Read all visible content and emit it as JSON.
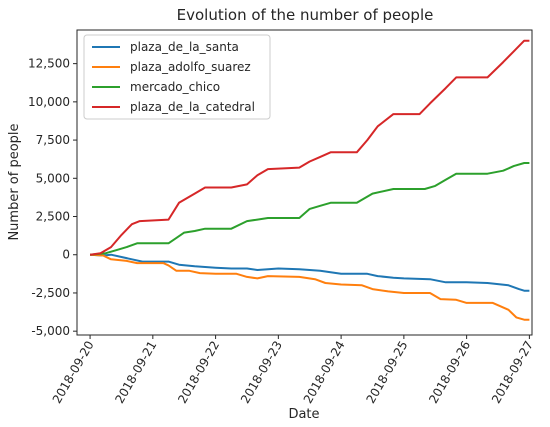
{
  "chart_data": {
    "type": "line",
    "title": "Evolution of the number of people",
    "xlabel": "Date",
    "ylabel": "Number of people",
    "xlim": [
      "2018-09-19T19:00",
      "2018-09-27T01:00"
    ],
    "ylim": [
      -5250,
      14700
    ],
    "x_ticks": [
      "2018-09-20",
      "2018-09-21",
      "2018-09-22",
      "2018-09-23",
      "2018-09-24",
      "2018-09-25",
      "2018-09-26",
      "2018-09-27"
    ],
    "y_ticks": [
      {
        "value": -5000,
        "label": "-5,000"
      },
      {
        "value": -2500,
        "label": "-2,500"
      },
      {
        "value": 0,
        "label": "0"
      },
      {
        "value": 2500,
        "label": "2,500"
      },
      {
        "value": 5000,
        "label": "5,000"
      },
      {
        "value": 7500,
        "label": "7,500"
      },
      {
        "value": 10000,
        "label": "10,000"
      },
      {
        "value": 12500,
        "label": "12,500"
      }
    ],
    "grid": false,
    "legend_position": "top-left",
    "series": [
      {
        "name": "plaza_de_la_santa",
        "color": "#1f77b4",
        "points": [
          [
            "2018-09-20T00:00",
            0
          ],
          [
            "2018-09-20T05:00",
            -50
          ],
          [
            "2018-09-20T08:00",
            0
          ],
          [
            "2018-09-20T12:00",
            -150
          ],
          [
            "2018-09-20T16:00",
            -300
          ],
          [
            "2018-09-20T20:00",
            -450
          ],
          [
            "2018-09-21T00:00",
            -450
          ],
          [
            "2018-09-21T06:00",
            -450
          ],
          [
            "2018-09-21T10:00",
            -650
          ],
          [
            "2018-09-21T16:00",
            -750
          ],
          [
            "2018-09-22T00:00",
            -850
          ],
          [
            "2018-09-22T06:00",
            -900
          ],
          [
            "2018-09-22T12:00",
            -900
          ],
          [
            "2018-09-22T16:00",
            -1000
          ],
          [
            "2018-09-22T20:00",
            -950
          ],
          [
            "2018-09-23T00:00",
            -900
          ],
          [
            "2018-09-23T08:00",
            -950
          ],
          [
            "2018-09-23T16:00",
            -1050
          ],
          [
            "2018-09-23T20:00",
            -1150
          ],
          [
            "2018-09-24T00:00",
            -1250
          ],
          [
            "2018-09-24T10:00",
            -1250
          ],
          [
            "2018-09-24T14:00",
            -1400
          ],
          [
            "2018-09-24T20:00",
            -1500
          ],
          [
            "2018-09-25T00:00",
            -1550
          ],
          [
            "2018-09-25T10:00",
            -1600
          ],
          [
            "2018-09-25T16:00",
            -1800
          ],
          [
            "2018-09-26T00:00",
            -1800
          ],
          [
            "2018-09-26T08:00",
            -1850
          ],
          [
            "2018-09-26T16:00",
            -2000
          ],
          [
            "2018-09-26T20:00",
            -2250
          ],
          [
            "2018-09-26T22:00",
            -2350
          ],
          [
            "2018-09-27T00:00",
            -2350
          ]
        ]
      },
      {
        "name": "plaza_adolfo_suarez",
        "color": "#ff7f0e",
        "points": [
          [
            "2018-09-20T00:00",
            0
          ],
          [
            "2018-09-20T05:00",
            -50
          ],
          [
            "2018-09-20T08:00",
            -300
          ],
          [
            "2018-09-20T14:00",
            -400
          ],
          [
            "2018-09-20T18:00",
            -550
          ],
          [
            "2018-09-21T04:00",
            -550
          ],
          [
            "2018-09-21T06:00",
            -700
          ],
          [
            "2018-09-21T09:00",
            -1050
          ],
          [
            "2018-09-21T14:00",
            -1050
          ],
          [
            "2018-09-21T18:00",
            -1200
          ],
          [
            "2018-09-22T00:00",
            -1250
          ],
          [
            "2018-09-22T08:00",
            -1250
          ],
          [
            "2018-09-22T12:00",
            -1450
          ],
          [
            "2018-09-22T16:00",
            -1550
          ],
          [
            "2018-09-22T20:00",
            -1400
          ],
          [
            "2018-09-23T08:00",
            -1450
          ],
          [
            "2018-09-23T14:00",
            -1600
          ],
          [
            "2018-09-23T18:00",
            -1850
          ],
          [
            "2018-09-24T00:00",
            -1950
          ],
          [
            "2018-09-24T08:00",
            -2000
          ],
          [
            "2018-09-24T12:00",
            -2250
          ],
          [
            "2018-09-24T18:00",
            -2400
          ],
          [
            "2018-09-25T00:00",
            -2500
          ],
          [
            "2018-09-25T10:00",
            -2500
          ],
          [
            "2018-09-25T14:00",
            -2900
          ],
          [
            "2018-09-25T20:00",
            -2950
          ],
          [
            "2018-09-26T00:00",
            -3150
          ],
          [
            "2018-09-26T10:00",
            -3150
          ],
          [
            "2018-09-26T16:00",
            -3600
          ],
          [
            "2018-09-26T19:00",
            -4100
          ],
          [
            "2018-09-26T22:00",
            -4250
          ],
          [
            "2018-09-27T00:00",
            -4250
          ]
        ]
      },
      {
        "name": "mercado_chico",
        "color": "#2ca02c",
        "points": [
          [
            "2018-09-20T00:00",
            0
          ],
          [
            "2018-09-20T06:00",
            100
          ],
          [
            "2018-09-20T10:00",
            300
          ],
          [
            "2018-09-20T14:00",
            500
          ],
          [
            "2018-09-20T18:00",
            750
          ],
          [
            "2018-09-21T06:00",
            750
          ],
          [
            "2018-09-21T09:00",
            1100
          ],
          [
            "2018-09-21T12:00",
            1450
          ],
          [
            "2018-09-21T16:00",
            1550
          ],
          [
            "2018-09-21T20:00",
            1700
          ],
          [
            "2018-09-22T06:00",
            1700
          ],
          [
            "2018-09-22T12:00",
            2200
          ],
          [
            "2018-09-22T16:00",
            2300
          ],
          [
            "2018-09-22T20:00",
            2400
          ],
          [
            "2018-09-23T08:00",
            2400
          ],
          [
            "2018-09-23T12:00",
            3000
          ],
          [
            "2018-09-23T16:00",
            3200
          ],
          [
            "2018-09-23T20:00",
            3400
          ],
          [
            "2018-09-24T06:00",
            3400
          ],
          [
            "2018-09-24T12:00",
            4000
          ],
          [
            "2018-09-24T20:00",
            4300
          ],
          [
            "2018-09-25T08:00",
            4300
          ],
          [
            "2018-09-25T12:00",
            4500
          ],
          [
            "2018-09-25T16:00",
            4900
          ],
          [
            "2018-09-25T20:00",
            5300
          ],
          [
            "2018-09-26T08:00",
            5300
          ],
          [
            "2018-09-26T14:00",
            5500
          ],
          [
            "2018-09-26T18:00",
            5800
          ],
          [
            "2018-09-26T22:00",
            6000
          ],
          [
            "2018-09-27T00:00",
            6000
          ]
        ]
      },
      {
        "name": "plaza_de_la_catedral",
        "color": "#d62728",
        "points": [
          [
            "2018-09-20T00:00",
            0
          ],
          [
            "2018-09-20T04:00",
            100
          ],
          [
            "2018-09-20T08:00",
            500
          ],
          [
            "2018-09-20T12:00",
            1300
          ],
          [
            "2018-09-20T16:00",
            2000
          ],
          [
            "2018-09-20T19:00",
            2200
          ],
          [
            "2018-09-21T06:00",
            2300
          ],
          [
            "2018-09-21T10:00",
            3400
          ],
          [
            "2018-09-21T16:00",
            4000
          ],
          [
            "2018-09-21T20:00",
            4400
          ],
          [
            "2018-09-22T06:00",
            4400
          ],
          [
            "2018-09-22T12:00",
            4600
          ],
          [
            "2018-09-22T16:00",
            5200
          ],
          [
            "2018-09-22T20:00",
            5600
          ],
          [
            "2018-09-23T08:00",
            5700
          ],
          [
            "2018-09-23T12:00",
            6100
          ],
          [
            "2018-09-23T16:00",
            6400
          ],
          [
            "2018-09-23T20:00",
            6700
          ],
          [
            "2018-09-24T06:00",
            6700
          ],
          [
            "2018-09-24T10:00",
            7500
          ],
          [
            "2018-09-24T14:00",
            8400
          ],
          [
            "2018-09-24T20:00",
            9200
          ],
          [
            "2018-09-25T06:00",
            9200
          ],
          [
            "2018-09-25T10:00",
            9900
          ],
          [
            "2018-09-25T16:00",
            10900
          ],
          [
            "2018-09-25T20:00",
            11600
          ],
          [
            "2018-09-26T08:00",
            11600
          ],
          [
            "2018-09-26T14:00",
            12600
          ],
          [
            "2018-09-26T18:00",
            13300
          ],
          [
            "2018-09-26T22:00",
            14000
          ],
          [
            "2018-09-27T00:00",
            14000
          ]
        ]
      }
    ]
  }
}
